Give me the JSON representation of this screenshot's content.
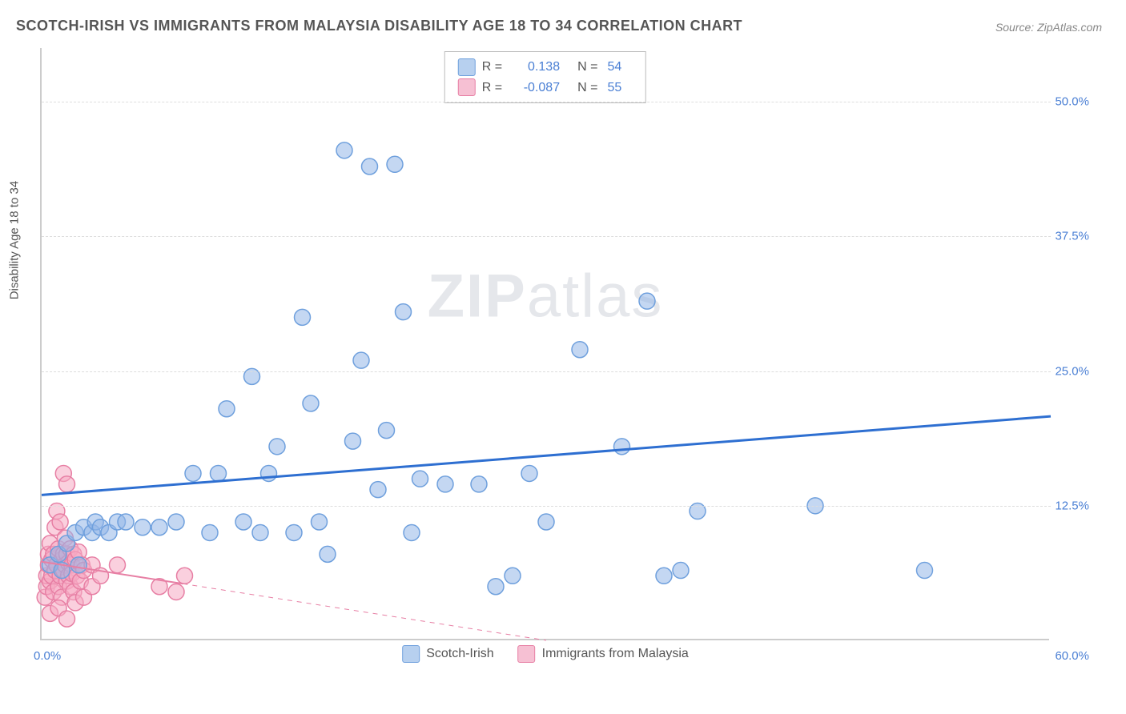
{
  "title": "SCOTCH-IRISH VS IMMIGRANTS FROM MALAYSIA DISABILITY AGE 18 TO 34 CORRELATION CHART",
  "source": "Source: ZipAtlas.com",
  "y_axis_label": "Disability Age 18 to 34",
  "watermark": {
    "bold": "ZIP",
    "light": "atlas"
  },
  "chart": {
    "type": "scatter",
    "xlim": [
      0,
      60
    ],
    "ylim": [
      0,
      55
    ],
    "x_ticks": [
      {
        "value": 0,
        "label": "0.0%"
      },
      {
        "value": 60,
        "label": "60.0%"
      }
    ],
    "y_ticks": [
      {
        "value": 12.5,
        "label": "12.5%"
      },
      {
        "value": 25.0,
        "label": "25.0%"
      },
      {
        "value": 37.5,
        "label": "37.5%"
      },
      {
        "value": 50.0,
        "label": "50.0%"
      }
    ],
    "grid_color": "#dddddd",
    "background_color": "#ffffff",
    "marker_radius": 10,
    "marker_stroke_width": 1.5,
    "series": [
      {
        "name": "Scotch-Irish",
        "fill_color": "rgba(147,183,231,0.55)",
        "stroke_color": "#6fa0dd",
        "swatch_fill": "#b7d0ef",
        "swatch_border": "#6fa0dd",
        "r_value": "0.138",
        "n_value": "54",
        "trend": {
          "x1": 0,
          "y1": 13.5,
          "x2": 60,
          "y2": 20.8,
          "color": "#2e6fd1",
          "width": 3,
          "dash": ""
        },
        "points": [
          [
            0.5,
            7
          ],
          [
            1,
            8
          ],
          [
            1.2,
            6.5
          ],
          [
            1.5,
            9
          ],
          [
            2,
            10
          ],
          [
            2.2,
            7
          ],
          [
            2.5,
            10.5
          ],
          [
            3,
            10
          ],
          [
            3.2,
            11
          ],
          [
            3.5,
            10.5
          ],
          [
            4,
            10
          ],
          [
            4.5,
            11
          ],
          [
            5,
            11
          ],
          [
            6,
            10.5
          ],
          [
            7,
            10.5
          ],
          [
            8,
            11
          ],
          [
            9,
            15.5
          ],
          [
            10,
            10
          ],
          [
            10.5,
            15.5
          ],
          [
            11,
            21.5
          ],
          [
            12,
            11
          ],
          [
            12.5,
            24.5
          ],
          [
            13,
            10
          ],
          [
            13.5,
            15.5
          ],
          [
            14,
            18
          ],
          [
            15,
            10
          ],
          [
            15.5,
            30
          ],
          [
            16,
            22
          ],
          [
            16.5,
            11
          ],
          [
            17,
            8
          ],
          [
            18,
            45.5
          ],
          [
            18.5,
            18.5
          ],
          [
            19,
            26
          ],
          [
            19.5,
            44
          ],
          [
            20,
            14
          ],
          [
            20.5,
            19.5
          ],
          [
            21,
            44.2
          ],
          [
            21.5,
            30.5
          ],
          [
            22,
            10
          ],
          [
            22.5,
            15
          ],
          [
            24,
            14.5
          ],
          [
            26,
            14.5
          ],
          [
            27,
            5
          ],
          [
            28,
            6
          ],
          [
            29,
            15.5
          ],
          [
            30,
            11
          ],
          [
            32,
            27
          ],
          [
            34.5,
            18
          ],
          [
            36,
            31.5
          ],
          [
            37,
            6
          ],
          [
            38,
            6.5
          ],
          [
            39,
            12
          ],
          [
            46,
            12.5
          ],
          [
            52.5,
            6.5
          ]
        ]
      },
      {
        "name": "Immigrants from Malaysia",
        "fill_color": "rgba(245,170,195,0.55)",
        "stroke_color": "#e77fa4",
        "swatch_fill": "#f6c0d3",
        "swatch_border": "#e77fa4",
        "r_value": "-0.087",
        "n_value": "55",
        "trend": {
          "x1": 0,
          "y1": 7.3,
          "x2": 30,
          "y2": 0,
          "color": "#e77fa4",
          "width": 2,
          "dash": "",
          "dashed_extension": true
        },
        "points": [
          [
            0.2,
            4
          ],
          [
            0.3,
            5
          ],
          [
            0.3,
            6
          ],
          [
            0.4,
            7
          ],
          [
            0.4,
            8
          ],
          [
            0.5,
            5.5
          ],
          [
            0.5,
            9
          ],
          [
            0.6,
            6
          ],
          [
            0.6,
            7.5
          ],
          [
            0.7,
            8
          ],
          [
            0.7,
            4.5
          ],
          [
            0.8,
            10.5
          ],
          [
            0.8,
            6.5
          ],
          [
            0.9,
            7
          ],
          [
            0.9,
            12
          ],
          [
            1.0,
            5
          ],
          [
            1.0,
            8.5
          ],
          [
            1.1,
            6
          ],
          [
            1.1,
            11
          ],
          [
            1.2,
            7.5
          ],
          [
            1.2,
            4
          ],
          [
            1.3,
            8
          ],
          [
            1.3,
            6.5
          ],
          [
            1.4,
            7
          ],
          [
            1.4,
            9.5
          ],
          [
            1.5,
            5.5
          ],
          [
            1.5,
            8
          ],
          [
            1.6,
            6
          ],
          [
            1.6,
            7.2
          ],
          [
            1.7,
            8.5
          ],
          [
            1.7,
            5
          ],
          [
            1.8,
            7
          ],
          [
            1.8,
            6.2
          ],
          [
            1.9,
            8
          ],
          [
            1.9,
            4.5
          ],
          [
            2.0,
            7.5
          ],
          [
            2.1,
            6
          ],
          [
            2.2,
            8.2
          ],
          [
            2.3,
            5.5
          ],
          [
            2.4,
            7
          ],
          [
            2.5,
            6.5
          ],
          [
            0.5,
            2.5
          ],
          [
            1.0,
            3
          ],
          [
            1.5,
            2
          ],
          [
            2.0,
            3.5
          ],
          [
            2.5,
            4
          ],
          [
            3.0,
            5
          ],
          [
            3.0,
            7
          ],
          [
            3.5,
            6
          ],
          [
            1.3,
            15.5
          ],
          [
            1.5,
            14.5
          ],
          [
            4.5,
            7
          ],
          [
            7,
            5
          ],
          [
            8,
            4.5
          ],
          [
            8.5,
            6
          ]
        ]
      }
    ]
  },
  "legend_top": {
    "r_label": "R =",
    "n_label": "N ="
  },
  "legend_bottom": [
    {
      "series_index": 0
    },
    {
      "series_index": 1
    }
  ]
}
